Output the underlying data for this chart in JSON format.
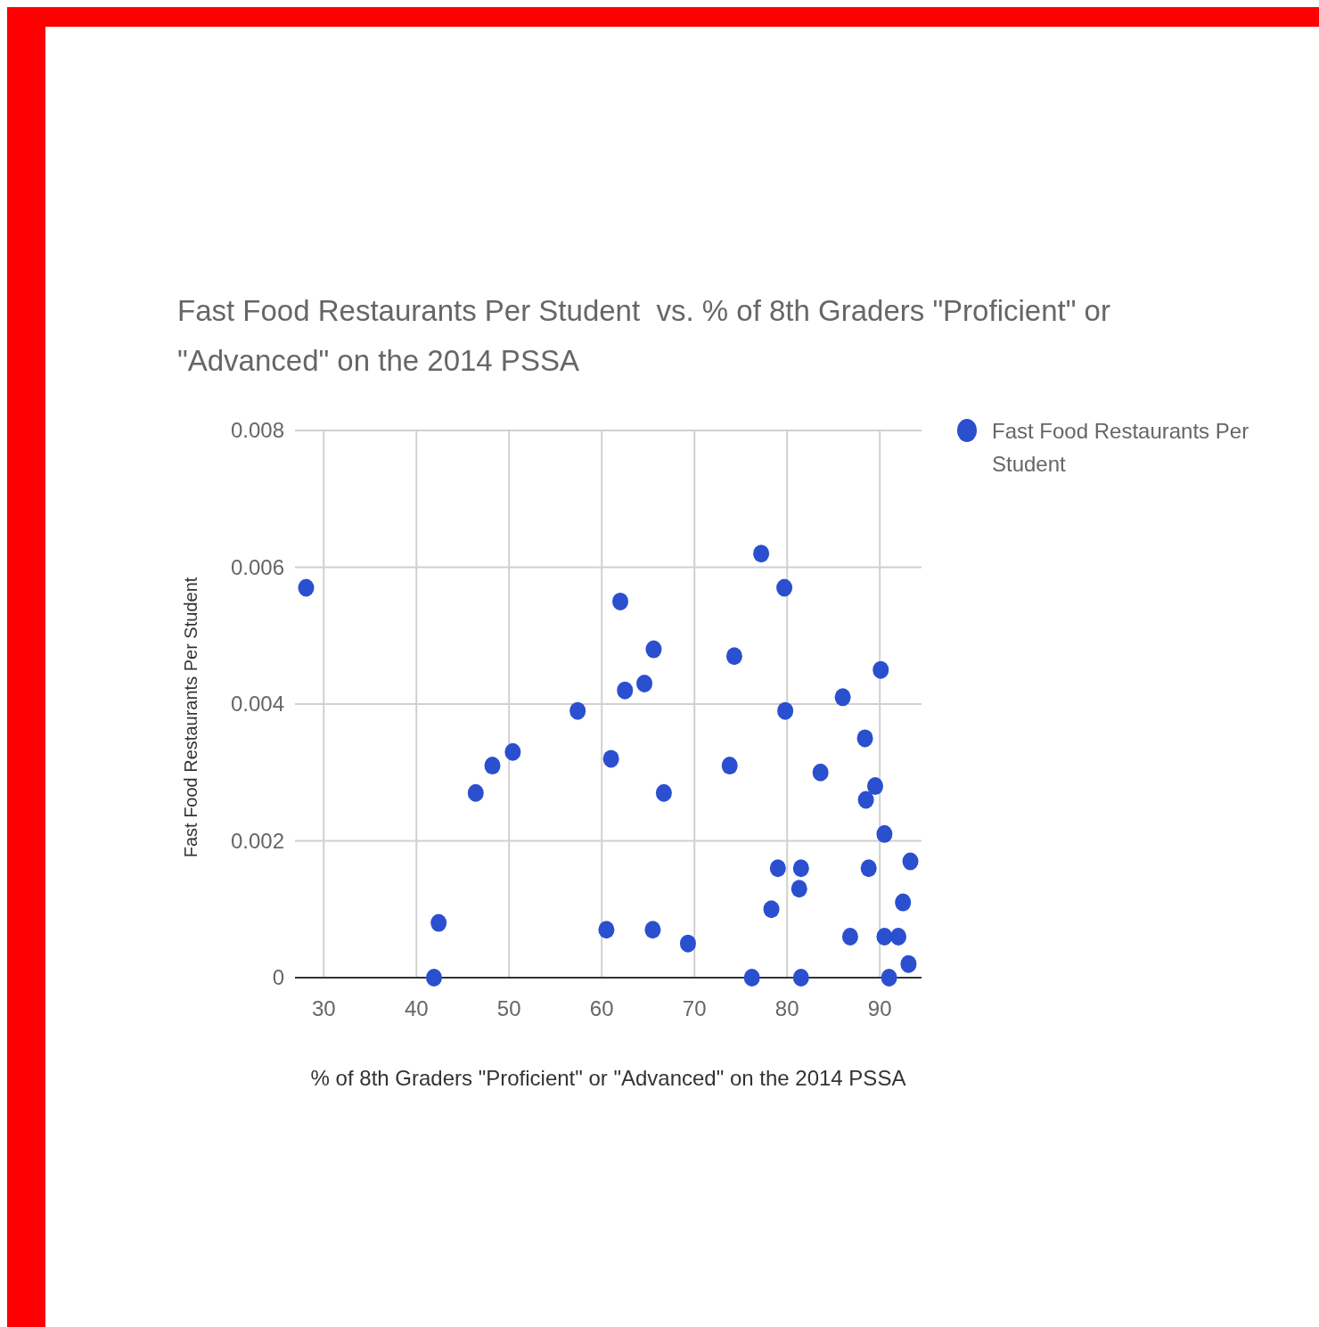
{
  "chart_data": {
    "type": "scatter",
    "title": "Fast Food Restaurants Per Student  vs. % of 8th Graders \"Proficient\" or \"Advanced\" on the 2014 PSSA",
    "xlabel": "% of 8th Graders \"Proficient\" or \"Advanced\" on the 2014 PSSA",
    "ylabel": "Fast Food Restaurants Per Student",
    "xlim": [
      26.9,
      94.5
    ],
    "ylim": [
      0,
      0.008
    ],
    "xticks": [
      30,
      40,
      50,
      60,
      70,
      80,
      90
    ],
    "yticks": [
      0,
      0.002,
      0.004,
      0.006,
      0.008
    ],
    "grid": true,
    "legend": "top right",
    "marker": "circle",
    "series": [
      {
        "name": "Fast Food Restaurants Per Student",
        "color": "#2a4fcf",
        "x": [
          28.1,
          41.9,
          42.4,
          46.4,
          48.2,
          50.4,
          57.4,
          60.5,
          61.0,
          62.0,
          62.5,
          64.6,
          65.6,
          65.5,
          66.7,
          69.3,
          73.8,
          74.3,
          76.2,
          77.2,
          78.3,
          79.0,
          79.7,
          79.8,
          81.3,
          81.5,
          81.5,
          83.6,
          86.0,
          86.8,
          88.4,
          88.5,
          88.8,
          89.5,
          90.1,
          90.5,
          90.5,
          91.0,
          92.0,
          92.5,
          93.1,
          93.3
        ],
        "values": [
          0.0057,
          0,
          0.0008,
          0.0027,
          0.0031,
          0.0033,
          0.0039,
          0.0007,
          0.0032,
          0.0055,
          0.0042,
          0.0043,
          0.0048,
          0.0007,
          0.0027,
          0.0005,
          0.0031,
          0.0047,
          0,
          0.0062,
          0.001,
          0.0016,
          0.0057,
          0.0039,
          0.0013,
          0.0016,
          0,
          0.003,
          0.0041,
          0.0006,
          0.0035,
          0.0026,
          0.0016,
          0.0028,
          0.0045,
          0.0021,
          0.0006,
          0,
          0.0006,
          0.0011,
          0.0002,
          0.0017
        ]
      }
    ]
  }
}
